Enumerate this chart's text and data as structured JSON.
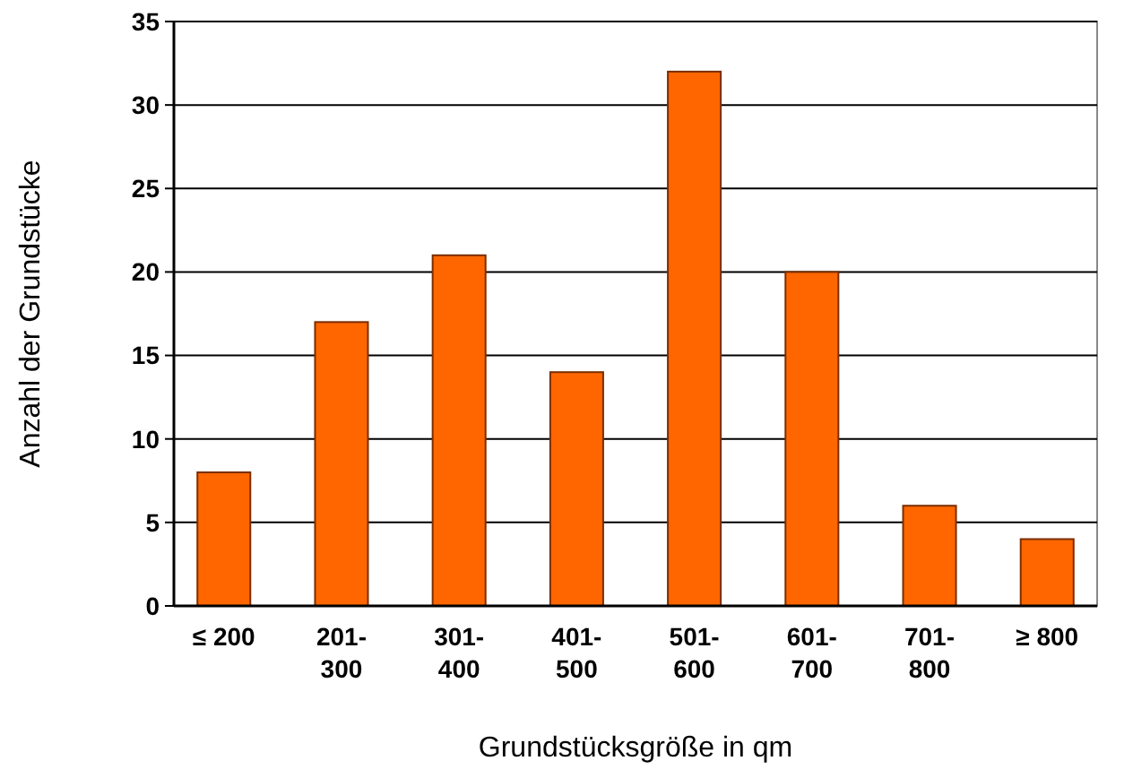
{
  "chart_data": {
    "type": "bar",
    "xlabel": "Grundstücksgröße in qm",
    "ylabel": "Anzahl der Grundstücke",
    "categories": [
      "≤ 200",
      "201-300",
      "301-400",
      "401-500",
      "501-600",
      "601-700",
      "701-800",
      "≥ 800"
    ],
    "values": [
      8,
      17,
      21,
      14,
      32,
      20,
      6,
      4
    ],
    "color": "#ff6600",
    "ylim": [
      0,
      35
    ],
    "yticks": [
      0,
      5,
      10,
      15,
      20,
      25,
      30,
      35
    ],
    "grid": "y"
  }
}
